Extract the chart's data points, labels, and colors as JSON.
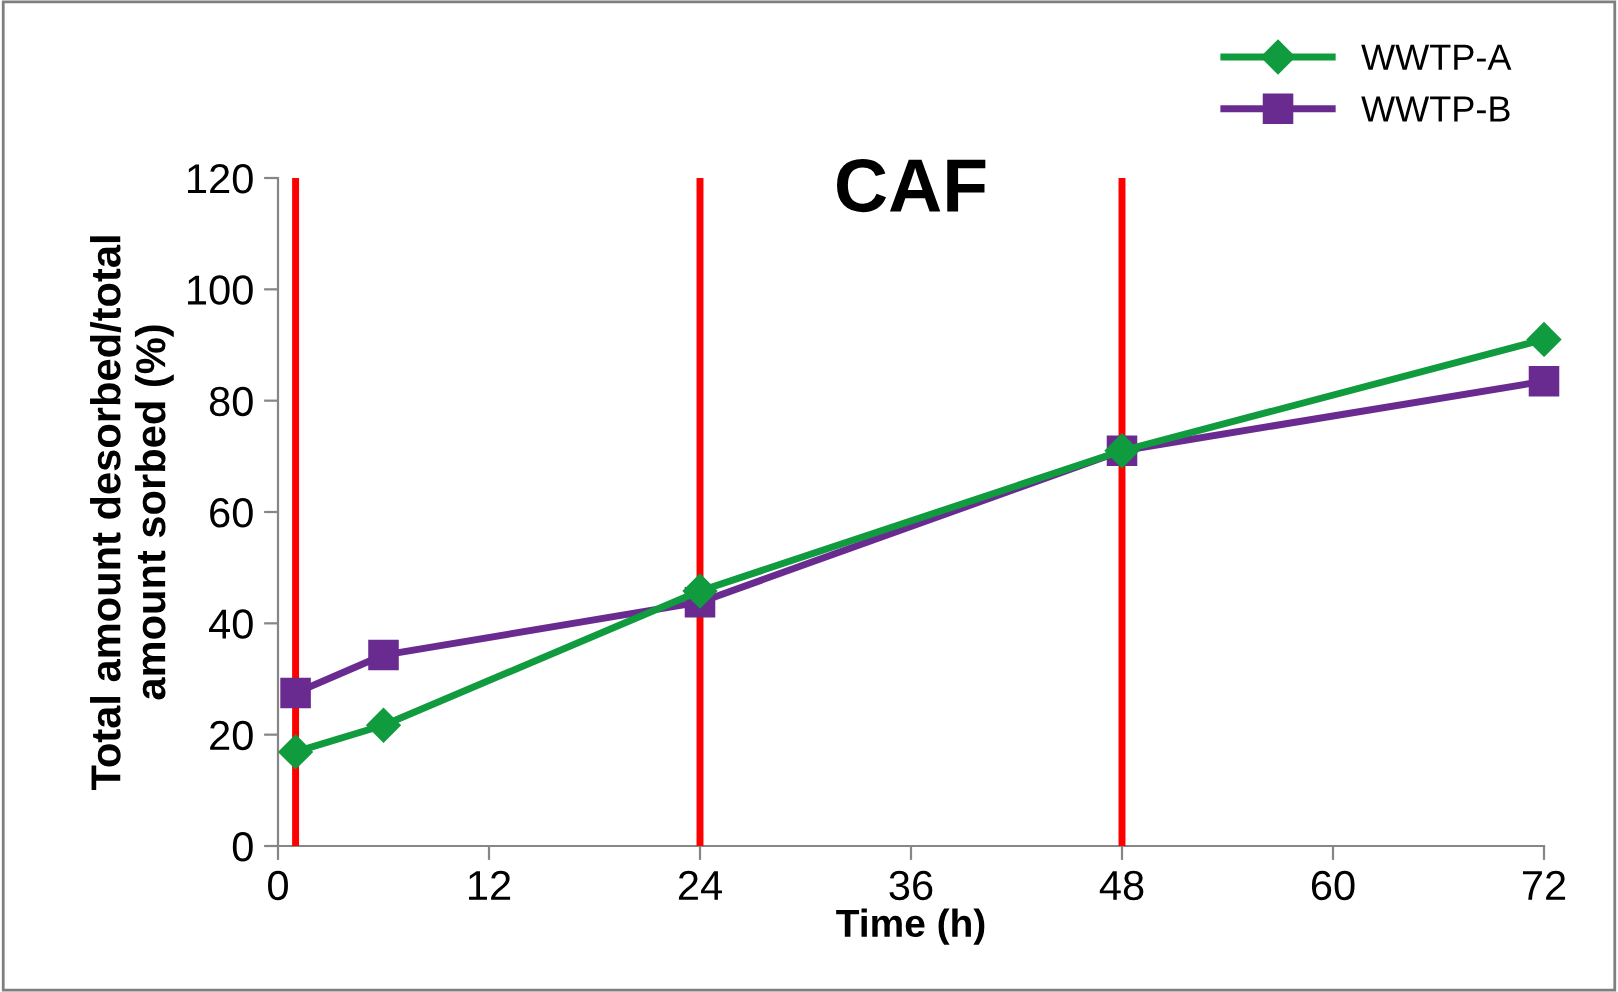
{
  "chart_data": {
    "type": "line",
    "title": "CAF",
    "xlabel": "Time (h)",
    "ylabel": "Total amount desorbed/total\namount sorbed (%)",
    "x": [
      1,
      6,
      24,
      48,
      72
    ],
    "series": [
      {
        "name": "WWTP-A",
        "color": "#119b3f",
        "values": [
          16.9,
          21.7,
          45.8,
          71,
          91
        ],
        "marker": "diamond"
      },
      {
        "name": "WWTP-B",
        "color": "#6a2b91",
        "values": [
          27.5,
          34.3,
          43.8,
          71,
          83.5
        ],
        "marker": "square"
      }
    ],
    "xlim": [
      0,
      72
    ],
    "xticks": [
      0,
      12,
      24,
      36,
      48,
      60,
      72
    ],
    "ylim": [
      0,
      120
    ],
    "yticks": [
      0,
      20,
      40,
      60,
      80,
      100,
      120
    ],
    "ref_lines": [
      {
        "axis": "x",
        "value": 1,
        "color": "#ff0000"
      },
      {
        "axis": "x",
        "value": 24,
        "color": "#ff0000"
      },
      {
        "axis": "x",
        "value": 48,
        "color": "#ff0000"
      }
    ],
    "grid": false,
    "legend": "top right",
    "line_style": "solid"
  }
}
